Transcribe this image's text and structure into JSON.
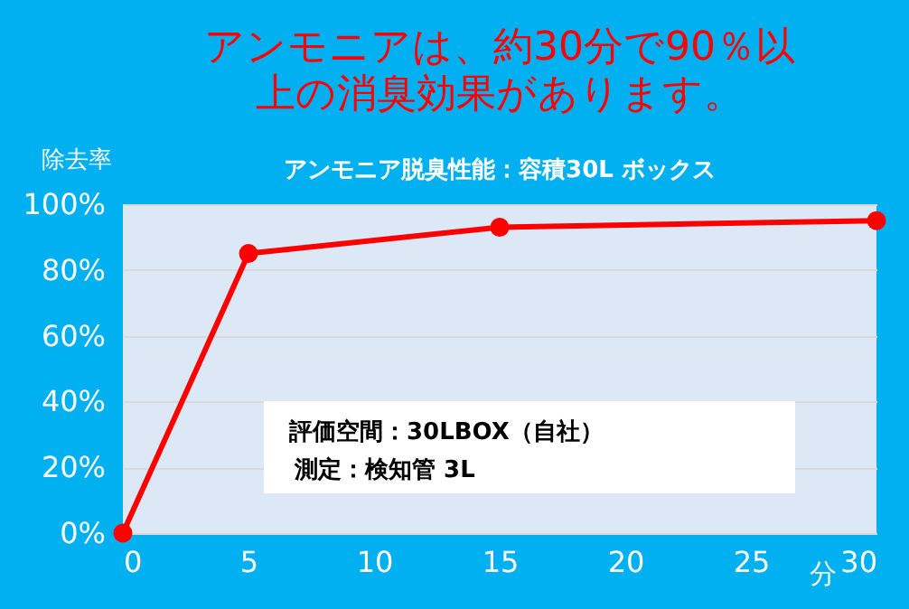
{
  "chart_data": {
    "type": "line",
    "title": "アンモニアは、約30分で90％以上の消臭効果があります。",
    "subtitle": "アンモニア脱臭性能：容積30L ボックス",
    "xlabel": "分",
    "ylabel": "除去率",
    "x": [
      0,
      5,
      15,
      30
    ],
    "series": [
      {
        "color": "#ff0000",
        "values": [
          0,
          85,
          93,
          95
        ]
      }
    ],
    "xlim": [
      0,
      30
    ],
    "xticks": [
      0,
      5,
      10,
      15,
      20,
      25,
      30
    ],
    "ylim": [
      0,
      100
    ],
    "yticks": [
      {
        "value": 0,
        "label": "0%"
      },
      {
        "value": 20,
        "label": "20%"
      },
      {
        "value": 40,
        "label": "40%"
      },
      {
        "value": 60,
        "label": "60%"
      },
      {
        "value": 80,
        "label": "80%"
      },
      {
        "value": 100,
        "label": "100%"
      }
    ],
    "grid": "y",
    "marker": "circle",
    "line_style": "solid",
    "annotations": [
      "評価空間：30LBOX（自社）",
      "測定：検知管 3L"
    ]
  }
}
